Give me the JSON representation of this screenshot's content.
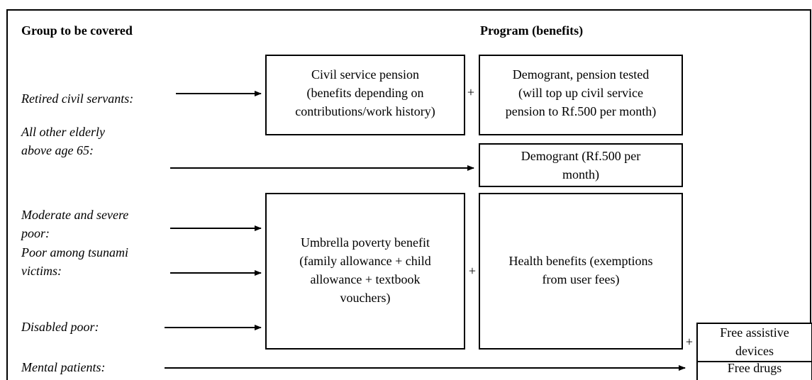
{
  "headers": {
    "group": "Group to be covered",
    "program": "Program (benefits)"
  },
  "groups": [
    [
      "Retired civil servants:"
    ],
    [
      "All other elderly",
      "above age 65:"
    ],
    [
      "Moderate and severe",
      "poor:"
    ],
    [
      "Poor among tsunami",
      "victims:"
    ],
    [
      "Disabled poor:"
    ],
    [
      "Mental patients:"
    ]
  ],
  "boxes": [
    [
      "Civil service pension",
      "(benefits depending on",
      "contributions/work history)"
    ],
    [
      "Demogrant, pension tested",
      "(will top up civil service",
      "pension to Rf.500 per month)"
    ],
    [
      "Demogrant (Rf.500 per",
      "month)"
    ],
    [
      "Umbrella poverty benefit",
      "(family allowance + child",
      "allowance + textbook",
      "vouchers)"
    ],
    [
      "Health benefits (exemptions",
      "from user fees)"
    ],
    [
      "Free assistive",
      "devices"
    ],
    [
      "Free drugs"
    ]
  ],
  "plus_signs": [
    "+",
    "+",
    "+"
  ]
}
